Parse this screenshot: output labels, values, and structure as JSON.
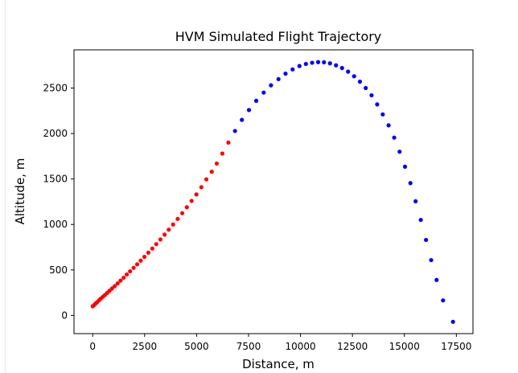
{
  "chart_data": {
    "type": "scatter",
    "title": "HVM Simulated Flight Trajectory",
    "xlabel": "Distance, m",
    "ylabel": "Altitude, m",
    "xlim": [
      -900,
      18300
    ],
    "ylim": [
      -200,
      2920
    ],
    "xticks": [
      0,
      2500,
      5000,
      7500,
      10000,
      12500,
      15000,
      17500
    ],
    "yticks": [
      0,
      500,
      1000,
      1500,
      2000,
      2500
    ],
    "grid": false,
    "legend": "none",
    "series": [
      {
        "color": "#ff0000",
        "points": [
          [
            0,
            100
          ],
          [
            60,
            112
          ],
          [
            130,
            128
          ],
          [
            210,
            145
          ],
          [
            300,
            165
          ],
          [
            390,
            185
          ],
          [
            490,
            205
          ],
          [
            590,
            225
          ],
          [
            700,
            248
          ],
          [
            810,
            272
          ],
          [
            930,
            296
          ],
          [
            1060,
            322
          ],
          [
            1200,
            352
          ],
          [
            1340,
            383
          ],
          [
            1490,
            415
          ],
          [
            1640,
            450
          ],
          [
            1800,
            485
          ],
          [
            1970,
            523
          ],
          [
            2140,
            562
          ],
          [
            2310,
            602
          ],
          [
            2490,
            644
          ],
          [
            2680,
            690
          ],
          [
            2870,
            735
          ],
          [
            3060,
            784
          ],
          [
            3260,
            835
          ],
          [
            3460,
            888
          ],
          [
            3660,
            943
          ],
          [
            3870,
            1000
          ],
          [
            4090,
            1061
          ],
          [
            4310,
            1124
          ],
          [
            4530,
            1190
          ],
          [
            4760,
            1259
          ],
          [
            4990,
            1330
          ],
          [
            5230,
            1410
          ],
          [
            5470,
            1496
          ],
          [
            5730,
            1580
          ],
          [
            5970,
            1670
          ],
          [
            6240,
            1780
          ],
          [
            6530,
            1900
          ]
        ]
      },
      {
        "color": "#0000ff",
        "points": [
          [
            6850,
            2028
          ],
          [
            7180,
            2150
          ],
          [
            7520,
            2258
          ],
          [
            7870,
            2360
          ],
          [
            8230,
            2450
          ],
          [
            8580,
            2530
          ],
          [
            8940,
            2598
          ],
          [
            9280,
            2658
          ],
          [
            9620,
            2705
          ],
          [
            9950,
            2742
          ],
          [
            10260,
            2765
          ],
          [
            10560,
            2778
          ],
          [
            10850,
            2785
          ],
          [
            11130,
            2783
          ],
          [
            11420,
            2772
          ],
          [
            11710,
            2750
          ],
          [
            12000,
            2720
          ],
          [
            12290,
            2680
          ],
          [
            12580,
            2630
          ],
          [
            12860,
            2570
          ],
          [
            13140,
            2500
          ],
          [
            13420,
            2420
          ],
          [
            13690,
            2320
          ],
          [
            13960,
            2210
          ],
          [
            14240,
            2090
          ],
          [
            14510,
            1955
          ],
          [
            14770,
            1800
          ],
          [
            15030,
            1635
          ],
          [
            15290,
            1455
          ],
          [
            15540,
            1255
          ],
          [
            15790,
            1050
          ],
          [
            16040,
            830
          ],
          [
            16290,
            608
          ],
          [
            16550,
            390
          ],
          [
            16860,
            165
          ],
          [
            17340,
            -70
          ]
        ]
      }
    ]
  }
}
